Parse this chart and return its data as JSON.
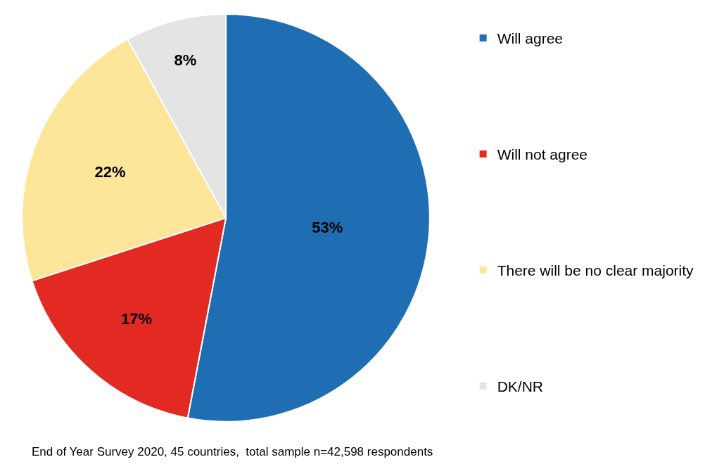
{
  "chart_data": {
    "type": "pie",
    "categories": [
      "Will agree",
      "Will not agree",
      "There will be no clear majority",
      "DK/NR"
    ],
    "values": [
      53,
      17,
      22,
      8
    ],
    "value_labels": [
      "53%",
      "17%",
      "22%",
      "8%"
    ],
    "colors": [
      "#1f6eb4",
      "#e32a22",
      "#fde59a",
      "#e4e4e4"
    ],
    "legend": "right",
    "annotations": [
      "End of Year Survey 2020, 45 countries,  total sample n=42,598 respondents"
    ]
  }
}
